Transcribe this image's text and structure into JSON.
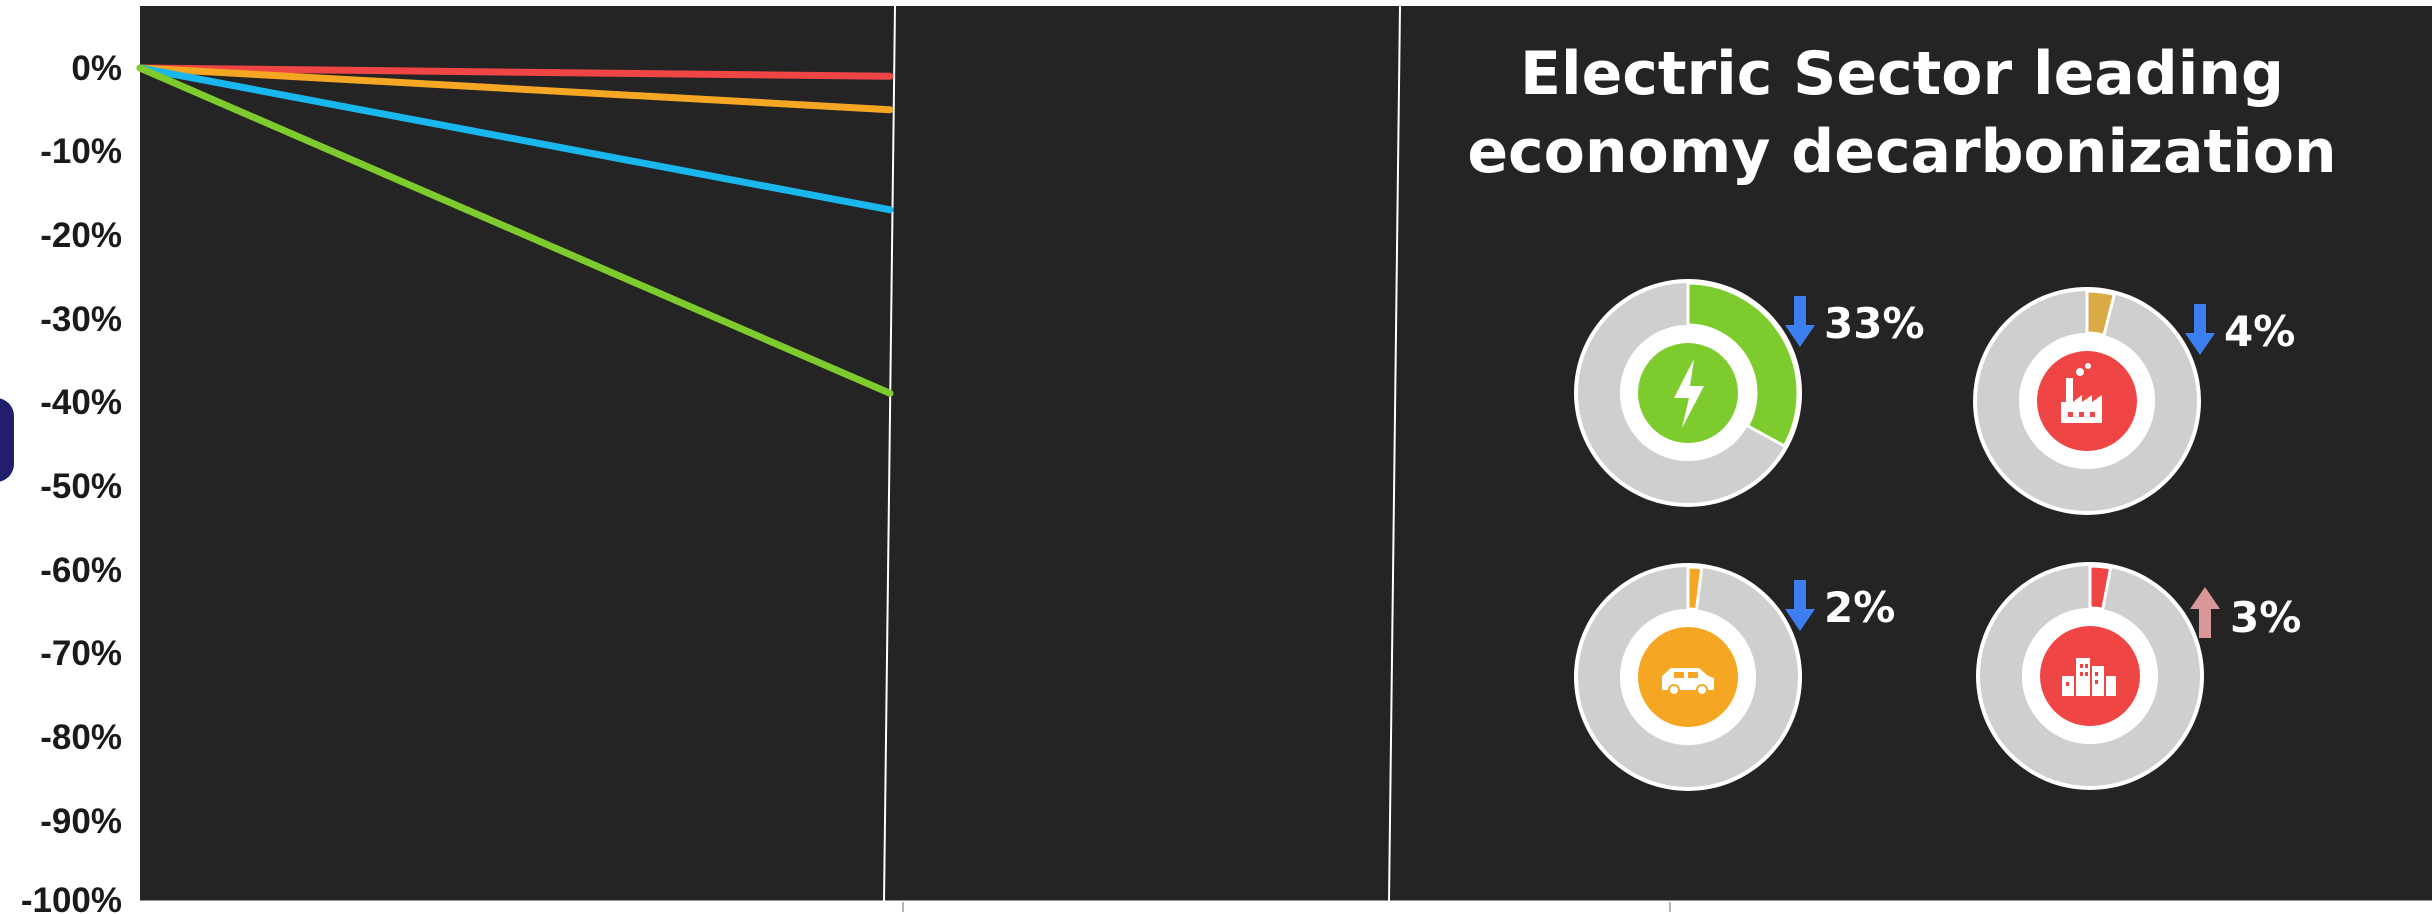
{
  "colors": {
    "plot_background": "#242424",
    "page_background": "#ffffff",
    "divider": "#ffffff",
    "ring_track": "#cfcfcf",
    "arrow_down": "#3d7ef0",
    "arrow_up": "#d99797"
  },
  "chart_data": [
    {
      "type": "line",
      "xlabel": "",
      "ylabel": "",
      "ylim": [
        -100,
        0
      ],
      "y_ticks": [
        "0%",
        "-10%",
        "-20%",
        "-30%",
        "-40%",
        "-50%",
        "-60%",
        "-70%",
        "-80%",
        "-90%",
        "-100%"
      ],
      "grid": false,
      "legend": "none",
      "series": [
        {
          "color": "#f04545",
          "values": [
            0,
            -1
          ]
        },
        {
          "color": "#f5a623",
          "values": [
            0,
            -5
          ]
        },
        {
          "color": "#1ab6ee",
          "values": [
            0,
            -17
          ]
        },
        {
          "color": "#7ecb2e",
          "values": [
            0,
            -39
          ]
        }
      ]
    },
    {
      "type": "pie",
      "title": "Electric Sector leading economy decarbonization",
      "title_lines": [
        "Electric Sector leading",
        "economy decarbonization"
      ],
      "slices": [
        {
          "icon": "lightning-icon",
          "color": "#7ecb2e",
          "value": 33,
          "label": "33%",
          "direction": "down"
        },
        {
          "icon": "factory-icon",
          "color": "#f04545",
          "slice_color": "#d9aa45",
          "value": 4,
          "label": "4%",
          "direction": "down"
        },
        {
          "icon": "car-icon",
          "color": "#f5a623",
          "value": 2,
          "label": "2%",
          "direction": "down"
        },
        {
          "icon": "buildings-icon",
          "color": "#f04545",
          "value": 3,
          "label": "3%",
          "direction": "up"
        }
      ]
    }
  ]
}
